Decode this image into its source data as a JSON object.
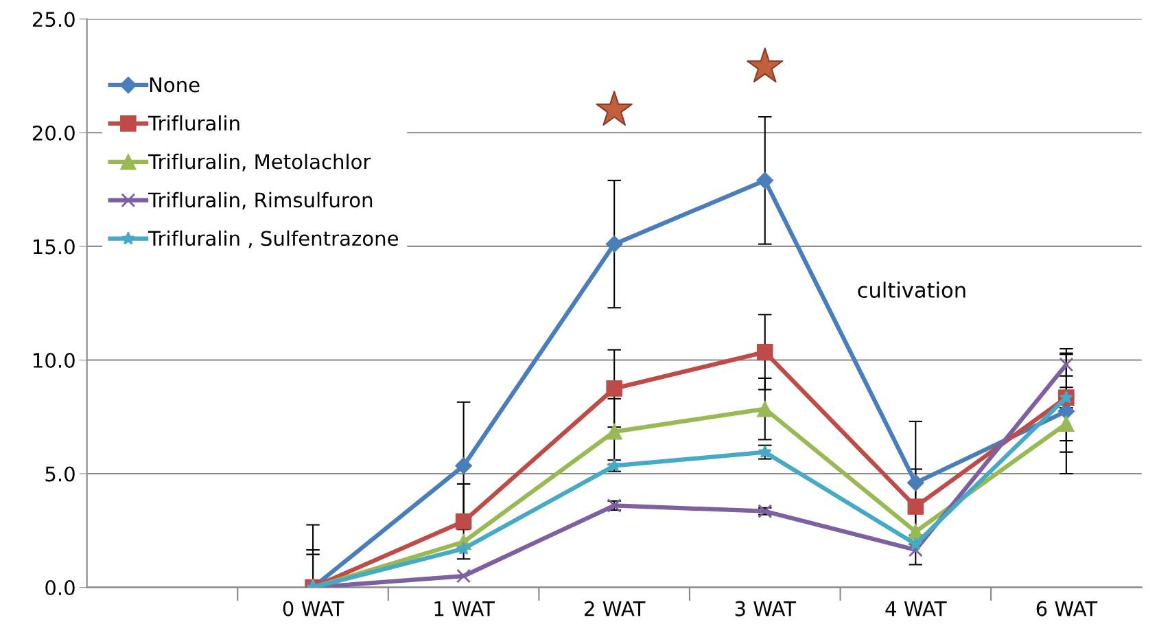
{
  "chart_data": {
    "type": "line",
    "categories": [
      null,
      "0 WAT",
      "1 WAT",
      "2 WAT",
      "3 WAT",
      "4 WAT",
      "6 WAT"
    ],
    "ylim": [
      0,
      25
    ],
    "yticks": [
      {
        "value": 0,
        "label": "0.0"
      },
      {
        "value": 5,
        "label": "5.0"
      },
      {
        "value": 10,
        "label": "10.0"
      },
      {
        "value": 15,
        "label": "15.0"
      },
      {
        "value": 20,
        "label": "20.0"
      },
      {
        "value": 25,
        "label": "25.0"
      }
    ],
    "grid": "y",
    "legend": "top left",
    "series": [
      {
        "name": "None",
        "color": "#4a7ebb",
        "marker": "diamond",
        "values": [
          null,
          0,
          5.35,
          15.1,
          17.9,
          4.6,
          7.75
        ],
        "errors": [
          null,
          [
            0,
            2.75
          ],
          2.8,
          2.8,
          2.8,
          2.7,
          2.75
        ]
      },
      {
        "name": "Trifluralin",
        "color": "#be4b48",
        "marker": "square",
        "values": [
          null,
          0,
          2.9,
          8.75,
          10.35,
          3.55,
          8.35
        ],
        "errors": [
          null,
          [
            0,
            1.65
          ],
          1.65,
          1.7,
          1.65,
          1.65,
          1.9
        ]
      },
      {
        "name": "Trifluralin, Metolachlor",
        "color": "#98b954",
        "marker": "triangle",
        "values": [
          null,
          0,
          2.0,
          6.85,
          7.85,
          2.45,
          7.2
        ],
        "errors": [
          null,
          [
            0,
            1.45
          ],
          null,
          1.45,
          1.35,
          null,
          1.25
        ]
      },
      {
        "name": "Trifluralin, Rimsulfuron",
        "color": "#7d60a0",
        "marker": "cross",
        "values": [
          null,
          0,
          0.5,
          3.6,
          3.35,
          1.65,
          9.8
        ],
        "errors": [
          null,
          null,
          null,
          0.2,
          0.15,
          0.65,
          0.5
        ]
      },
      {
        "name": "Trifluralin , Sulfentrazone",
        "color": "#46aac5",
        "marker": "star",
        "values": [
          null,
          0,
          1.7,
          5.35,
          5.95,
          1.9,
          8.35
        ],
        "errors": [
          null,
          null,
          null,
          0.25,
          0.3,
          null,
          0.45
        ]
      },
      {
        "type": "scatter",
        "color": "#c0603c",
        "marker": "star",
        "x": [
          "2 WAT",
          "3 WAT"
        ],
        "values": [
          21.0,
          22.9
        ]
      }
    ],
    "annotations": [
      "cultivation"
    ]
  }
}
